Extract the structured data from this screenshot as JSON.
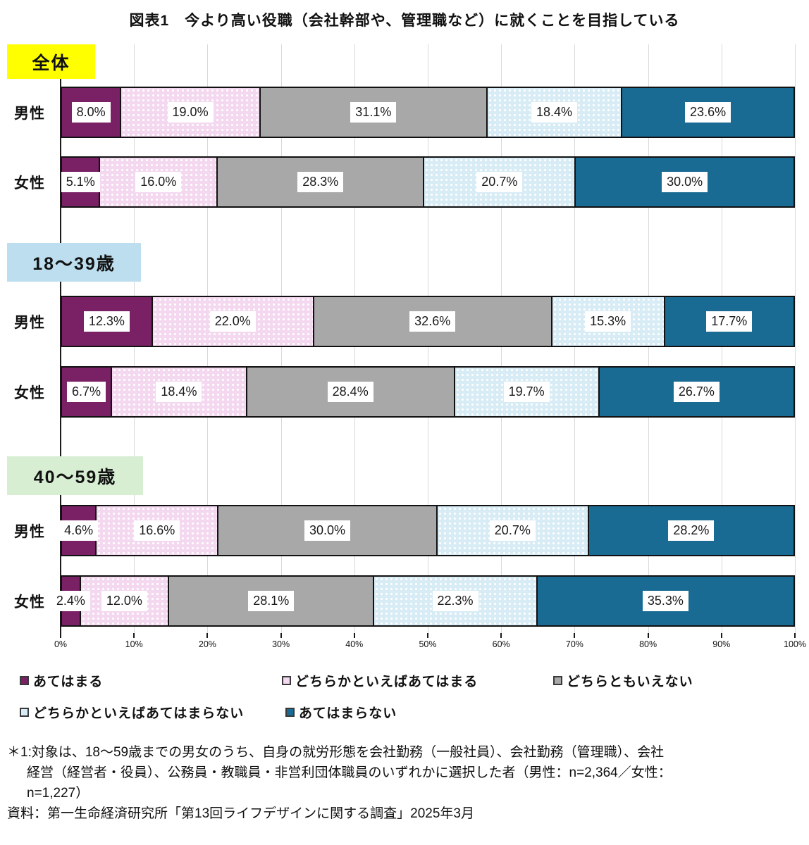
{
  "title": "図表1　今より高い役職（会社幹部や、管理職など）に就くことを目指している",
  "colors": {
    "segment_border": "#111111",
    "gridline": "#d9d9d9",
    "axis_line": "#1a1a1a",
    "label_box": "#ffffff"
  },
  "chart_data": {
    "type": "bar",
    "stacked": true,
    "orientation": "horizontal",
    "title": "図表1　今より高い役職（会社幹部や、管理職など）に就くことを目指している",
    "xlim": [
      0,
      100
    ],
    "x_ticks": [
      "0%",
      "10%",
      "20%",
      "30%",
      "40%",
      "50%",
      "60%",
      "70%",
      "80%",
      "90%",
      "100%"
    ],
    "grid": true,
    "value_suffix": "%",
    "series": [
      {
        "name": "あてはまる",
        "color": "#7a2166",
        "dotted": false
      },
      {
        "name": "どちらかといえばあてはまる",
        "color": "#f4d8f0",
        "dotted": true
      },
      {
        "name": "どちらともいえない",
        "color": "#a8a8a8",
        "dotted": false
      },
      {
        "name": "どちらかといえばあてはまらない",
        "color": "#d8ecf6",
        "dotted": true
      },
      {
        "name": "あてはまらない",
        "color": "#1a6b93",
        "dotted": false
      }
    ],
    "groups": [
      {
        "label": "全体",
        "header_color": "#ffff00",
        "rows": [
          {
            "label": "男性",
            "values": [
              8.0,
              19.0,
              31.1,
              18.4,
              23.6
            ]
          },
          {
            "label": "女性",
            "values": [
              5.1,
              16.0,
              28.3,
              20.7,
              30.0
            ]
          }
        ]
      },
      {
        "label": "18～39歳",
        "header_color": "#bcdeef",
        "rows": [
          {
            "label": "男性",
            "values": [
              12.3,
              22.0,
              32.6,
              15.3,
              17.7
            ]
          },
          {
            "label": "女性",
            "values": [
              6.7,
              18.4,
              28.4,
              19.7,
              26.7
            ]
          }
        ]
      },
      {
        "label": "40～59歳",
        "header_color": "#d7eed3",
        "rows": [
          {
            "label": "男性",
            "values": [
              4.6,
              16.6,
              30.0,
              20.7,
              28.2
            ]
          },
          {
            "label": "女性",
            "values": [
              2.4,
              12.0,
              28.1,
              22.3,
              35.3
            ]
          }
        ]
      }
    ],
    "legend_rows": [
      [
        0,
        1,
        2
      ],
      [
        3,
        4
      ]
    ],
    "legend_position": "bottom"
  },
  "notes": {
    "lines": [
      {
        "text": "＊1:対象は、18～59歳までの男女のうち、自身の就労形態を会社勤務（一般社員）、会社勤務（管理職）、会社",
        "indent": false
      },
      {
        "text": "経営（経営者・役員）、公務員・教職員・非営利団体職員のいずれかに選択した者（男性：n=2,364／女性：",
        "indent": true
      },
      {
        "text": "n=1,227）",
        "indent": true
      },
      {
        "text": "資料：第一生命経済研究所「第13回ライフデザインに関する調査」2025年3月",
        "indent": false
      }
    ]
  }
}
